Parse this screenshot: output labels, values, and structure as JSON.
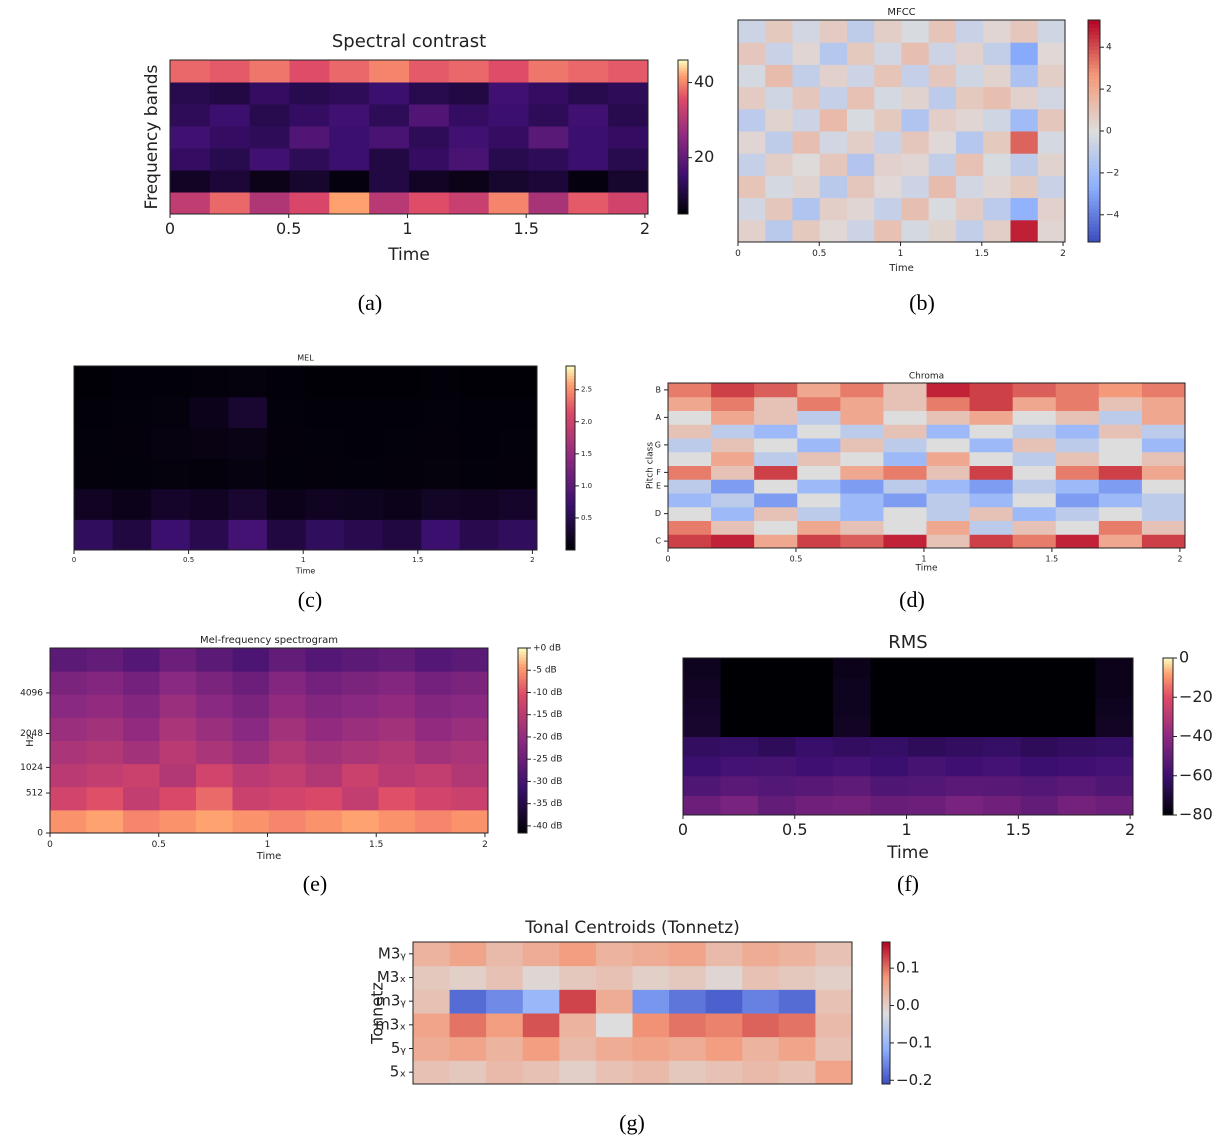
{
  "chart_data": [
    {
      "type": "heatmap",
      "title": "Spectral contrast",
      "xlabel": "Time",
      "ylabel": "Frequency bands",
      "caption": "(a)",
      "colormap": "magma",
      "colorbar": true,
      "xlim": [
        0,
        2.013
      ],
      "xticks": [
        0,
        0.5,
        1,
        1.5,
        2
      ],
      "clim": [
        5,
        46
      ],
      "cticks": [
        20,
        40
      ],
      "z": [
        [
          32,
          38,
          30,
          35,
          42,
          31,
          36,
          33,
          40,
          29,
          37,
          34
        ],
        [
          8,
          10,
          7,
          9,
          6,
          11,
          8,
          7,
          9,
          10,
          6,
          9
        ],
        [
          14,
          12,
          16,
          13,
          15,
          11,
          14,
          17,
          12,
          13,
          15,
          12
        ],
        [
          16,
          14,
          13,
          18,
          15,
          17,
          13,
          16,
          14,
          19,
          15,
          14
        ],
        [
          13,
          15,
          12,
          14,
          16,
          13,
          18,
          14,
          15,
          13,
          16,
          12
        ],
        [
          12,
          11,
          14,
          12,
          13,
          15,
          12,
          11,
          16,
          14,
          12,
          13
        ],
        [
          38,
          37,
          39,
          36,
          38,
          40,
          37,
          38,
          36,
          39,
          38,
          37
        ]
      ]
    },
    {
      "type": "heatmap",
      "title": "MFCC",
      "xlabel": "Time",
      "caption": "(b)",
      "colormap": "coolwarm",
      "colorbar": true,
      "xlim": [
        0,
        2.012
      ],
      "xticks": [
        0,
        0.5,
        1,
        1.5,
        2
      ],
      "clim": [
        -5.3,
        5.3
      ],
      "cticks": [
        {
          "value": -4,
          "label": "−4"
        },
        {
          "value": -2,
          "label": "−2"
        },
        0,
        2,
        4
      ],
      "z": [
        [
          0.5,
          -1.2,
          0.8,
          0.2,
          -0.6,
          1.1,
          -0.3,
          0.4,
          -0.9,
          0.6,
          4.8,
          0.3
        ],
        [
          -0.4,
          0.9,
          -1.5,
          0.6,
          0.3,
          -0.8,
          1.2,
          -0.2,
          0.7,
          -1.1,
          -2.5,
          0.5
        ],
        [
          1.0,
          -0.3,
          0.4,
          -1.2,
          0.9,
          0.2,
          -0.6,
          1.3,
          -0.4,
          0.3,
          0.8,
          -0.7
        ],
        [
          -0.8,
          0.6,
          0.1,
          0.9,
          -1.4,
          0.5,
          0.3,
          -0.9,
          1.1,
          -0.2,
          -1.0,
          0.4
        ],
        [
          0.3,
          -1.0,
          1.2,
          -0.4,
          0.6,
          -0.7,
          0.9,
          0.2,
          -1.3,
          0.8,
          3.6,
          -0.3
        ],
        [
          -1.1,
          0.4,
          -0.6,
          1.4,
          -0.2,
          0.8,
          -1.5,
          0.6,
          0.3,
          -0.5,
          -2.0,
          0.9
        ],
        [
          0.7,
          -0.5,
          0.9,
          -0.8,
          1.1,
          -0.3,
          0.4,
          -1.1,
          0.8,
          1.2,
          0.5,
          -0.4
        ],
        [
          -0.3,
          1.3,
          -0.9,
          0.5,
          -0.6,
          1.0,
          -0.8,
          0.9,
          -0.5,
          0.4,
          -1.6,
          0.6
        ],
        [
          0.9,
          -0.7,
          0.3,
          -1.3,
          0.8,
          -0.4,
          1.2,
          -0.6,
          0.5,
          -0.9,
          -2.8,
          0.2
        ],
        [
          -0.6,
          0.8,
          -0.4,
          0.7,
          -1.0,
          0.6,
          -0.2,
          1.0,
          -0.7,
          0.3,
          0.9,
          -0.5
        ]
      ]
    },
    {
      "type": "heatmap",
      "title": "MEL",
      "xlabel": "Time",
      "caption": "(c)",
      "colormap": "magma",
      "colorbar": true,
      "xlim": [
        0,
        2.02
      ],
      "xticks": [
        0,
        0.5,
        1,
        1.5,
        2
      ],
      "clim": [
        0,
        2.87
      ],
      "cticks": [
        0.5,
        {
          "value": 1,
          "label": "1.0"
        },
        1.5,
        {
          "value": 2,
          "label": "2.0"
        },
        2.5
      ],
      "z": [
        [
          0.6,
          0.4,
          0.7,
          0.5,
          0.8,
          0.4,
          0.6,
          0.5,
          0.4,
          0.7,
          0.5,
          0.6
        ],
        [
          0.2,
          0.15,
          0.25,
          0.2,
          0.3,
          0.15,
          0.2,
          0.18,
          0.15,
          0.22,
          0.2,
          0.25
        ],
        [
          0.05,
          0.04,
          0.06,
          0.05,
          0.08,
          0.04,
          0.05,
          0.04,
          0.05,
          0.06,
          0.04,
          0.05
        ],
        [
          0.04,
          0.05,
          0.08,
          0.1,
          0.12,
          0.05,
          0.04,
          0.03,
          0.04,
          0.05,
          0.03,
          0.04
        ],
        [
          0.03,
          0.04,
          0.06,
          0.15,
          0.3,
          0.04,
          0.03,
          0.03,
          0.03,
          0.04,
          0.03,
          0.03
        ],
        [
          0.02,
          0.03,
          0.03,
          0.05,
          0.06,
          0.03,
          0.02,
          0.02,
          0.02,
          0.03,
          0.02,
          0.02
        ]
      ]
    },
    {
      "type": "heatmap",
      "title": "Chroma",
      "xlabel": "Time",
      "ylabel": "Pitch class",
      "caption": "(d)",
      "colormap": "coolwarm",
      "colorbar": false,
      "xlim": [
        0,
        2.02
      ],
      "xticks": [
        0,
        0.5,
        1,
        1.5,
        2
      ],
      "clim": [
        0,
        1
      ],
      "yticklabels": [
        "C",
        null,
        "D",
        null,
        "E",
        "F",
        null,
        "G",
        null,
        "A",
        null,
        "B"
      ],
      "z": [
        [
          0.9,
          0.95,
          0.7,
          0.9,
          0.85,
          0.95,
          0.6,
          0.9,
          0.8,
          0.95,
          0.7,
          0.9
        ],
        [
          0.8,
          0.6,
          0.5,
          0.7,
          0.6,
          0.5,
          0.7,
          0.4,
          0.6,
          0.5,
          0.8,
          0.6
        ],
        [
          0.5,
          0.3,
          0.6,
          0.4,
          0.3,
          0.5,
          0.4,
          0.6,
          0.3,
          0.4,
          0.5,
          0.4
        ],
        [
          0.3,
          0.4,
          0.2,
          0.5,
          0.3,
          0.2,
          0.4,
          0.3,
          0.5,
          0.2,
          0.3,
          0.4
        ],
        [
          0.4,
          0.2,
          0.5,
          0.3,
          0.2,
          0.4,
          0.3,
          0.2,
          0.4,
          0.3,
          0.2,
          0.5
        ],
        [
          0.8,
          0.6,
          0.9,
          0.5,
          0.7,
          0.8,
          0.6,
          0.9,
          0.5,
          0.8,
          0.9,
          0.7
        ],
        [
          0.5,
          0.7,
          0.4,
          0.6,
          0.5,
          0.3,
          0.7,
          0.5,
          0.4,
          0.6,
          0.5,
          0.6
        ],
        [
          0.4,
          0.6,
          0.5,
          0.3,
          0.6,
          0.4,
          0.5,
          0.3,
          0.6,
          0.4,
          0.5,
          0.3
        ],
        [
          0.6,
          0.4,
          0.3,
          0.5,
          0.4,
          0.6,
          0.3,
          0.5,
          0.4,
          0.3,
          0.6,
          0.4
        ],
        [
          0.5,
          0.7,
          0.6,
          0.4,
          0.7,
          0.5,
          0.6,
          0.7,
          0.5,
          0.6,
          0.4,
          0.7
        ],
        [
          0.7,
          0.8,
          0.6,
          0.8,
          0.7,
          0.6,
          0.8,
          0.9,
          0.7,
          0.8,
          0.6,
          0.7
        ],
        [
          0.8,
          0.9,
          0.85,
          0.7,
          0.8,
          0.6,
          0.95,
          0.9,
          0.85,
          0.8,
          0.75,
          0.8
        ]
      ]
    },
    {
      "type": "heatmap",
      "title": "Mel-frequency spectrogram",
      "xlabel": "Time",
      "ylabel": "Hz",
      "caption": "(e)",
      "colormap": "magma",
      "colorbar": true,
      "xlim": [
        0,
        2.014
      ],
      "xticks": [
        0,
        0.5,
        1,
        1.5,
        2
      ],
      "yscale": "mel",
      "ylim": [
        0,
        8192
      ],
      "yticks": [
        0,
        512,
        1024,
        2048,
        4096
      ],
      "clim": [
        -41.6,
        0
      ],
      "cticks": [
        {
          "value": 0,
          "label": "+0 dB"
        },
        {
          "value": -5,
          "label": "-5 dB"
        },
        {
          "value": -10,
          "label": "-10 dB"
        },
        {
          "value": -15,
          "label": "-15 dB"
        },
        {
          "value": -20,
          "label": "-20 dB"
        },
        {
          "value": -25,
          "label": "-25 dB"
        },
        {
          "value": -30,
          "label": "-30 dB"
        },
        {
          "value": -35,
          "label": "-35 dB"
        },
        {
          "value": -40,
          "label": "-40 dB"
        }
      ],
      "z": [
        [
          -5,
          -4,
          -6,
          -5,
          -4,
          -5,
          -6,
          -5,
          -4,
          -5,
          -6,
          -5
        ],
        [
          -12,
          -10,
          -14,
          -11,
          -8,
          -13,
          -12,
          -11,
          -14,
          -10,
          -12,
          -13
        ],
        [
          -15,
          -14,
          -13,
          -16,
          -12,
          -15,
          -14,
          -16,
          -13,
          -15,
          -14,
          -16
        ],
        [
          -17,
          -16,
          -18,
          -15,
          -17,
          -19,
          -16,
          -18,
          -17,
          -16,
          -18,
          -17
        ],
        [
          -19,
          -18,
          -20,
          -17,
          -19,
          -21,
          -18,
          -20,
          -19,
          -18,
          -20,
          -19
        ],
        [
          -21,
          -20,
          -22,
          -19,
          -21,
          -23,
          -20,
          -22,
          -21,
          -20,
          -22,
          -21
        ],
        [
          -23,
          -22,
          -24,
          -21,
          -23,
          -25,
          -22,
          -24,
          -23,
          -22,
          -24,
          -23
        ],
        [
          -27,
          -26,
          -28,
          -25,
          -27,
          -29,
          -26,
          -28,
          -27,
          -26,
          -28,
          -27
        ]
      ]
    },
    {
      "type": "heatmap",
      "title": "RMS",
      "xlabel": "Time",
      "caption": "(f)",
      "colormap": "magma",
      "colorbar": true,
      "xlim": [
        0,
        2.013
      ],
      "xticks": [
        0,
        0.5,
        1,
        1.5,
        2
      ],
      "clim": [
        -80,
        0
      ],
      "cticks": [
        0,
        {
          "value": -20,
          "label": "−20"
        },
        {
          "value": -40,
          "label": "−40"
        },
        {
          "value": -60,
          "label": "−60"
        },
        {
          "value": -80,
          "label": "−80"
        }
      ],
      "z": [
        [
          -48,
          -45,
          -50,
          -47,
          -46,
          -49,
          -48,
          -45,
          -47,
          -50,
          -46,
          -48
        ],
        [
          -55,
          -52,
          -54,
          -53,
          -51,
          -55,
          -54,
          -52,
          -53,
          -54,
          -52,
          -55
        ],
        [
          -60,
          -58,
          -57,
          -59,
          -58,
          -60,
          -57,
          -59,
          -58,
          -60,
          -59,
          -58
        ],
        [
          -63,
          -62,
          -64,
          -61,
          -63,
          -62,
          -64,
          -63,
          -62,
          -64,
          -63,
          -62
        ],
        [
          -72,
          -80,
          -80,
          -80,
          -74,
          -80,
          -80,
          -80,
          -80,
          -80,
          -80,
          -74
        ],
        [
          -73,
          -80,
          -80,
          -80,
          -75,
          -80,
          -80,
          -80,
          -80,
          -80,
          -80,
          -75
        ],
        [
          -74,
          -80,
          -80,
          -80,
          -75,
          -80,
          -80,
          -80,
          -80,
          -80,
          -80,
          -76
        ],
        [
          -75,
          -80,
          -80,
          -80,
          -76,
          -80,
          -80,
          -80,
          -80,
          -80,
          -80,
          -76
        ]
      ]
    },
    {
      "type": "heatmap",
      "title": "Tonal Centroids (Tonnetz)",
      "ylabel": "Tonnetz",
      "caption": "(g)",
      "colormap": "coolwarm",
      "colorbar": true,
      "clim": [
        -0.21,
        0.17
      ],
      "cticks": [
        {
          "value": -0.2,
          "label": "−0.2"
        },
        {
          "value": -0.1,
          "label": "−0.1"
        },
        {
          "value": 0,
          "label": "0.0"
        },
        0.1
      ],
      "yticklabels": [
        "5ₓ",
        "5ᵧ",
        "m3ₓ",
        "m3ᵧ",
        "M3ₓ",
        "M3ᵧ"
      ],
      "z": [
        [
          0.02,
          0.01,
          0.03,
          0.02,
          0.0,
          0.02,
          0.03,
          0.01,
          0.02,
          0.03,
          0.02,
          0.06
        ],
        [
          0.05,
          0.06,
          0.04,
          0.07,
          0.03,
          0.05,
          0.06,
          0.05,
          0.07,
          0.04,
          0.06,
          0.02
        ],
        [
          0.06,
          0.1,
          0.07,
          0.12,
          0.04,
          -0.02,
          0.08,
          0.1,
          0.09,
          0.11,
          0.1,
          0.03
        ],
        [
          0.02,
          -0.18,
          -0.15,
          -0.1,
          0.13,
          0.05,
          -0.14,
          -0.17,
          -0.19,
          -0.16,
          -0.18,
          0.02
        ],
        [
          0.01,
          0.0,
          0.02,
          -0.01,
          0.01,
          0.02,
          0.0,
          0.01,
          -0.01,
          0.02,
          0.01,
          0.0
        ],
        [
          0.04,
          0.06,
          0.03,
          0.05,
          0.07,
          0.04,
          0.05,
          0.06,
          0.03,
          0.05,
          0.04,
          0.02
        ]
      ]
    }
  ]
}
